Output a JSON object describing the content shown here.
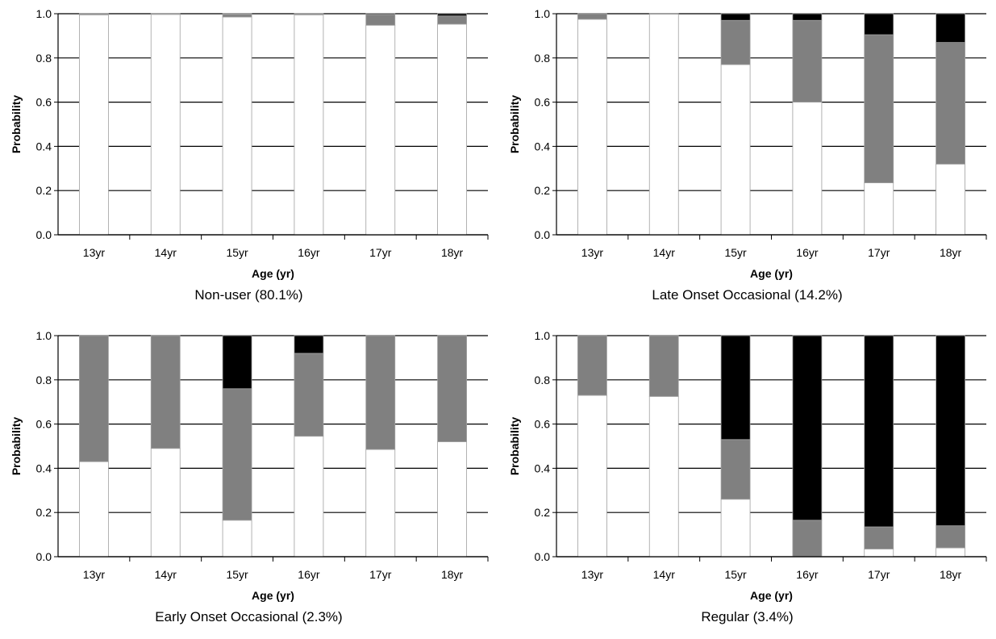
{
  "chart_data": [
    {
      "type": "bar",
      "stacked": true,
      "title": "Non-user (80.1%)",
      "xlabel": "Age (yr)",
      "ylabel": "Probability",
      "ylim": [
        0,
        1
      ],
      "yticks": [
        "0.0",
        "0.2",
        "0.4",
        "0.6",
        "0.8",
        "1.0"
      ],
      "categories": [
        "13yr",
        "14yr",
        "15yr",
        "16yr",
        "17yr",
        "18yr"
      ],
      "grid": true,
      "series": [
        {
          "color": "#ffffff",
          "values": [
            0.995,
            0.997,
            0.985,
            0.995,
            0.948,
            0.953
          ]
        },
        {
          "color": "#808080",
          "values": [
            0.004,
            0.002,
            0.012,
            0.004,
            0.048,
            0.037
          ]
        },
        {
          "color": "#000000",
          "values": [
            0.001,
            0.001,
            0.003,
            0.001,
            0.004,
            0.01
          ]
        }
      ]
    },
    {
      "type": "bar",
      "stacked": true,
      "title": "Late Onset Occasional (14.2%)",
      "xlabel": "Age (yr)",
      "ylabel": "Probability",
      "ylim": [
        0,
        1
      ],
      "yticks": [
        "0.0",
        "0.2",
        "0.4",
        "0.6",
        "0.8",
        "1.0"
      ],
      "categories": [
        "13yr",
        "14yr",
        "15yr",
        "16yr",
        "17yr",
        "18yr"
      ],
      "grid": true,
      "series": [
        {
          "color": "#ffffff",
          "values": [
            0.975,
            0.998,
            0.77,
            0.6,
            0.235,
            0.32
          ]
        },
        {
          "color": "#808080",
          "values": [
            0.025,
            0.002,
            0.2,
            0.37,
            0.67,
            0.55
          ]
        },
        {
          "color": "#000000",
          "values": [
            0.0,
            0.0,
            0.03,
            0.03,
            0.095,
            0.13
          ]
        }
      ]
    },
    {
      "type": "bar",
      "stacked": true,
      "title": "Early Onset Occasional (2.3%)",
      "xlabel": "Age (yr)",
      "ylabel": "Probability",
      "ylim": [
        0,
        1
      ],
      "yticks": [
        "0.0",
        "0.2",
        "0.4",
        "0.6",
        "0.8",
        "1.0"
      ],
      "categories": [
        "13yr",
        "14yr",
        "15yr",
        "16yr",
        "17yr",
        "18yr"
      ],
      "grid": true,
      "series": [
        {
          "color": "#ffffff",
          "values": [
            0.43,
            0.49,
            0.165,
            0.545,
            0.485,
            0.52
          ]
        },
        {
          "color": "#808080",
          "values": [
            0.57,
            0.51,
            0.595,
            0.375,
            0.515,
            0.48
          ]
        },
        {
          "color": "#000000",
          "values": [
            0.0,
            0.0,
            0.24,
            0.08,
            0.0,
            0.0
          ]
        }
      ]
    },
    {
      "type": "bar",
      "stacked": true,
      "title": "Regular (3.4%)",
      "xlabel": "Age (yr)",
      "ylabel": "Probability",
      "ylim": [
        0,
        1
      ],
      "yticks": [
        "0.0",
        "0.2",
        "0.4",
        "0.6",
        "0.8",
        "1.0"
      ],
      "categories": [
        "13yr",
        "14yr",
        "15yr",
        "16yr",
        "17yr",
        "18yr"
      ],
      "grid": true,
      "series": [
        {
          "color": "#ffffff",
          "values": [
            0.73,
            0.725,
            0.26,
            0.0,
            0.035,
            0.04
          ]
        },
        {
          "color": "#808080",
          "values": [
            0.27,
            0.275,
            0.27,
            0.165,
            0.1,
            0.1
          ]
        },
        {
          "color": "#000000",
          "values": [
            0.0,
            0.0,
            0.47,
            0.835,
            0.865,
            0.86
          ]
        }
      ]
    }
  ]
}
